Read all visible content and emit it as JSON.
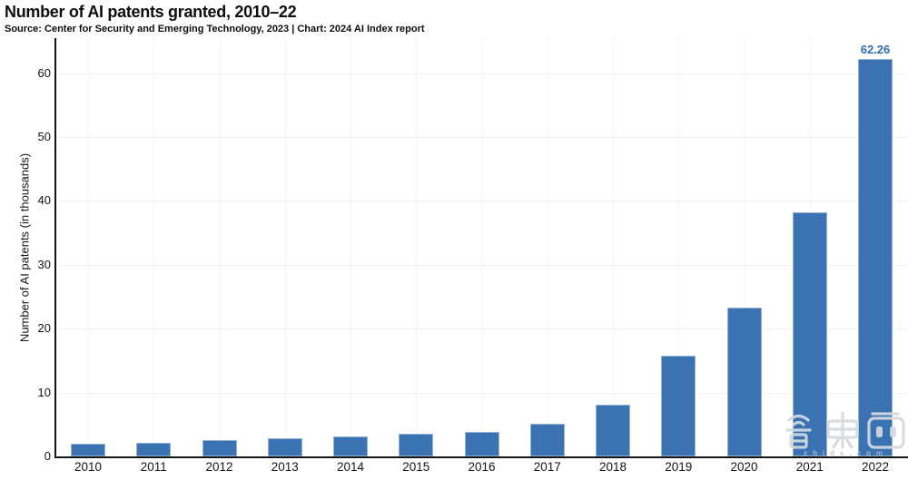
{
  "header": {
    "title": "Number of AI patents granted, 2010–22",
    "subtitle": "Source: Center for Security and Emerging Technology, 2023 | Chart: 2024 AI Index report"
  },
  "watermark": {
    "logo_text": "智東西",
    "domain": "zhidx.com"
  },
  "chart_data": {
    "type": "bar",
    "title": "Number of AI patents granted, 2010–22",
    "categories": [
      "2010",
      "2011",
      "2012",
      "2013",
      "2014",
      "2015",
      "2016",
      "2017",
      "2018",
      "2019",
      "2020",
      "2021",
      "2022"
    ],
    "values": [
      2.0,
      2.2,
      2.6,
      2.8,
      3.1,
      3.5,
      3.9,
      5.1,
      8.1,
      15.8,
      23.3,
      38.2,
      62.26
    ],
    "annotation": {
      "category": "2022",
      "label": "62.26"
    },
    "xlabel": "",
    "ylabel": "Number of AI patents (in thousands)",
    "yticks": [
      0,
      10,
      20,
      30,
      40,
      50,
      60
    ],
    "ylim": [
      0,
      65.5
    ],
    "grid": true,
    "legend": "none",
    "bar_color": "#3b73b2",
    "annotation_color": "#2f6db6",
    "axis_color": "#141414",
    "hgrid_color": "#f0f0f0",
    "vgrid_color": "#f4f4f4"
  }
}
